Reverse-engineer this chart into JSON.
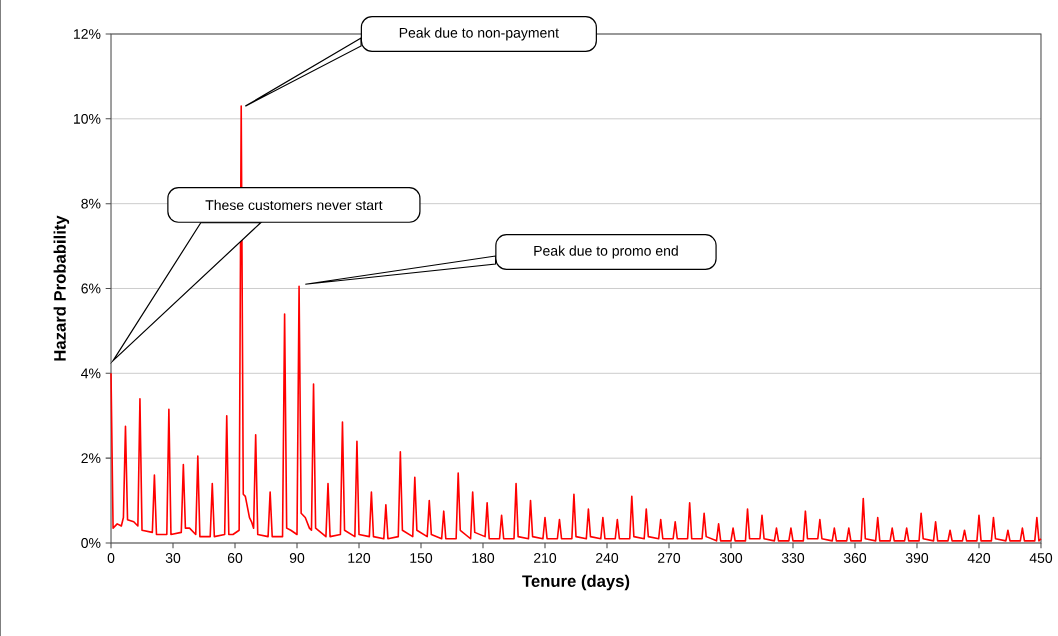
{
  "chart_data": {
    "type": "line",
    "xlabel": "Tenure (days)",
    "ylabel": "Hazard Probability",
    "color": "#ff0000",
    "grid": "y",
    "line_style": "solid",
    "xlim": [
      0,
      450
    ],
    "xticks": [
      0,
      30,
      60,
      90,
      120,
      150,
      180,
      210,
      240,
      270,
      300,
      330,
      360,
      390,
      420,
      450
    ],
    "ylim": [
      0,
      12
    ],
    "yticks": [
      {
        "value": 0,
        "label": "0%"
      },
      {
        "value": 2,
        "label": "2%"
      },
      {
        "value": 4,
        "label": "4%"
      },
      {
        "value": 6,
        "label": "6%"
      },
      {
        "value": 8,
        "label": "8%"
      },
      {
        "value": 10,
        "label": "10%"
      },
      {
        "value": 12,
        "label": "12%"
      }
    ],
    "x": [
      0,
      1,
      3,
      5,
      6,
      7,
      8,
      11,
      13,
      14,
      15,
      20,
      21,
      22,
      27,
      28,
      29,
      34,
      35,
      36,
      38,
      41,
      42,
      43,
      48,
      49,
      50,
      55,
      56,
      57,
      59,
      62,
      63,
      64,
      65,
      67,
      68,
      69,
      70,
      71,
      76,
      77,
      78,
      83,
      84,
      85,
      87,
      90,
      91,
      92,
      94,
      96,
      97,
      98,
      99,
      104,
      105,
      106,
      111,
      112,
      113,
      118,
      119,
      120,
      125,
      126,
      127,
      132,
      133,
      134,
      139,
      140,
      141,
      146,
      147,
      148,
      153,
      154,
      155,
      160,
      161,
      162,
      167,
      168,
      169,
      174,
      175,
      176,
      181,
      182,
      183,
      188,
      189,
      190,
      195,
      196,
      197,
      202,
      203,
      204,
      209,
      210,
      211,
      216,
      217,
      218,
      223,
      224,
      225,
      230,
      231,
      232,
      237,
      238,
      239,
      244,
      245,
      246,
      251,
      252,
      253,
      258,
      259,
      260,
      265,
      266,
      267,
      272,
      273,
      274,
      279,
      280,
      281,
      286,
      287,
      288,
      293,
      294,
      295,
      300,
      301,
      302,
      307,
      308,
      309,
      314,
      315,
      316,
      321,
      322,
      323,
      328,
      329,
      330,
      335,
      336,
      337,
      342,
      343,
      344,
      349,
      350,
      351,
      356,
      357,
      358,
      363,
      364,
      365,
      370,
      371,
      372,
      377,
      378,
      379,
      384,
      385,
      386,
      391,
      392,
      393,
      398,
      399,
      400,
      405,
      406,
      407,
      412,
      413,
      414,
      419,
      420,
      421,
      426,
      427,
      428,
      433,
      434,
      435,
      440,
      441,
      442,
      447,
      448,
      449,
      450
    ],
    "values": [
      4.0,
      0.35,
      0.45,
      0.4,
      0.6,
      2.75,
      0.55,
      0.5,
      0.4,
      3.4,
      0.3,
      0.25,
      1.6,
      0.2,
      0.2,
      3.15,
      0.2,
      0.25,
      1.85,
      0.35,
      0.35,
      0.2,
      2.05,
      0.15,
      0.15,
      1.4,
      0.15,
      0.2,
      3.0,
      0.2,
      0.2,
      0.3,
      10.3,
      1.15,
      1.1,
      0.6,
      0.5,
      0.35,
      2.55,
      0.2,
      0.15,
      1.2,
      0.15,
      0.15,
      5.4,
      0.35,
      0.3,
      0.2,
      6.05,
      0.7,
      0.6,
      0.35,
      0.3,
      3.75,
      0.35,
      0.15,
      1.4,
      0.15,
      0.2,
      2.85,
      0.3,
      0.15,
      2.4,
      0.2,
      0.15,
      1.2,
      0.15,
      0.1,
      0.9,
      0.1,
      0.15,
      2.15,
      0.3,
      0.15,
      1.55,
      0.3,
      0.15,
      1.0,
      0.2,
      0.1,
      0.75,
      0.1,
      0.1,
      1.65,
      0.3,
      0.1,
      1.2,
      0.25,
      0.15,
      0.95,
      0.1,
      0.1,
      0.65,
      0.1,
      0.1,
      1.4,
      0.15,
      0.1,
      1.0,
      0.15,
      0.1,
      0.6,
      0.1,
      0.1,
      0.55,
      0.1,
      0.1,
      1.15,
      0.15,
      0.1,
      0.8,
      0.15,
      0.1,
      0.6,
      0.1,
      0.1,
      0.55,
      0.1,
      0.1,
      1.1,
      0.15,
      0.1,
      0.8,
      0.15,
      0.1,
      0.55,
      0.1,
      0.1,
      0.5,
      0.1,
      0.1,
      0.95,
      0.1,
      0.1,
      0.7,
      0.15,
      0.05,
      0.45,
      0.05,
      0.05,
      0.35,
      0.05,
      0.05,
      0.8,
      0.1,
      0.1,
      0.65,
      0.1,
      0.05,
      0.35,
      0.05,
      0.05,
      0.35,
      0.05,
      0.05,
      0.75,
      0.1,
      0.1,
      0.55,
      0.1,
      0.05,
      0.35,
      0.05,
      0.05,
      0.35,
      0.05,
      0.05,
      1.05,
      0.1,
      0.05,
      0.6,
      0.05,
      0.05,
      0.35,
      0.05,
      0.05,
      0.35,
      0.05,
      0.05,
      0.7,
      0.1,
      0.05,
      0.5,
      0.05,
      0.05,
      0.3,
      0.05,
      0.05,
      0.3,
      0.05,
      0.05,
      0.65,
      0.05,
      0.05,
      0.6,
      0.1,
      0.05,
      0.3,
      0.05,
      0.05,
      0.35,
      0.05,
      0.05,
      0.6,
      0.05,
      0.1
    ],
    "annotations": [
      "These customers never start",
      "Peak due to non-payment",
      "Peak due to promo end"
    ]
  }
}
